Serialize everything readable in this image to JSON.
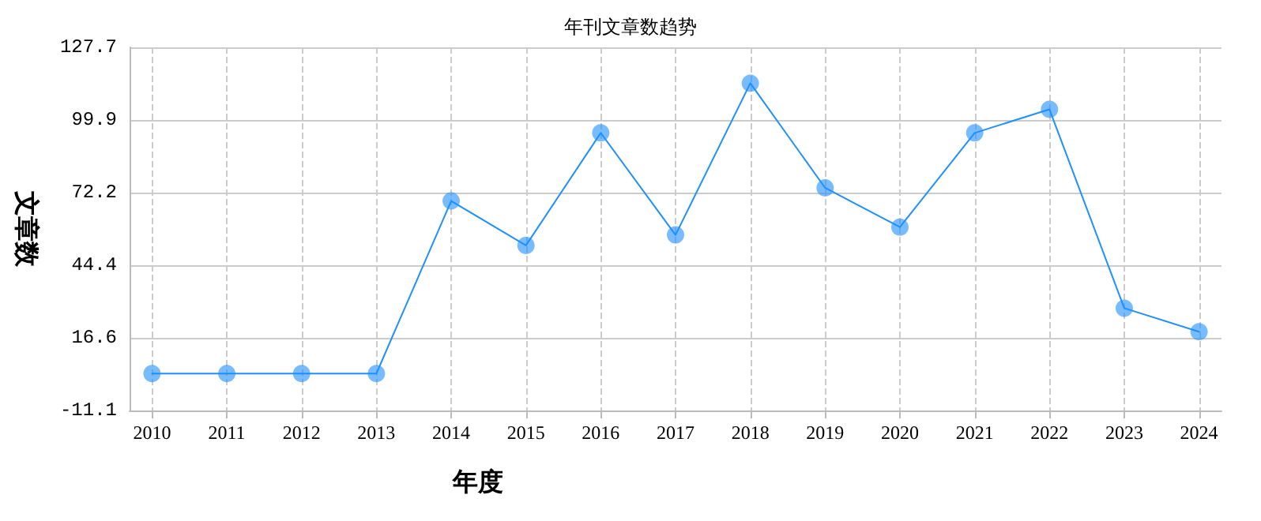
{
  "chart_data": {
    "type": "line",
    "title": "年刊文章数趋势",
    "xlabel": "年度",
    "ylabel": "文章数",
    "x": [
      2010,
      2011,
      2012,
      2013,
      2014,
      2015,
      2016,
      2017,
      2018,
      2019,
      2020,
      2021,
      2022,
      2023,
      2024
    ],
    "series": [
      {
        "color": "#1e90ff",
        "values": [
          3,
          3,
          3,
          3,
          69,
          52,
          95,
          56,
          114,
          74,
          59,
          95,
          104,
          28,
          19
        ]
      }
    ],
    "xlim": [
      2009.7,
      2024.3
    ],
    "xticks": [
      2010,
      2011,
      2012,
      2013,
      2014,
      2015,
      2016,
      2017,
      2018,
      2019,
      2020,
      2021,
      2022,
      2023,
      2024
    ],
    "ylim": [
      -11.1,
      127.7
    ],
    "yticks": [
      -11.1,
      16.6,
      44.4,
      72.2,
      99.9,
      127.7
    ],
    "grid": true,
    "marker": "circle",
    "line_style": "solid"
  }
}
